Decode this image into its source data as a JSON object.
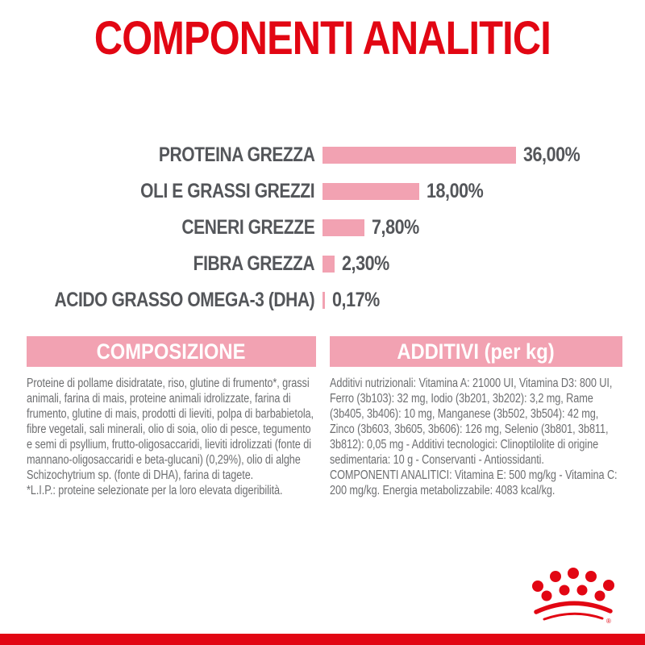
{
  "page": {
    "title": "COMPONENTI ANALITICI",
    "colors": {
      "brand_red": "#E20613",
      "pink": "#F2A2B2",
      "label_gray": "#54565A",
      "body_gray": "#6D6E70"
    }
  },
  "chart_data": {
    "type": "bar",
    "orientation": "horizontal",
    "title": "COMPONENTI ANALITICI",
    "unit": "%",
    "xlim": [
      0,
      36
    ],
    "grid": false,
    "bar_color": "#F2A2B2",
    "categories": [
      "PROTEINA GREZZA",
      "OLI E GRASSI GREZZI",
      "CENERI GREZZE",
      "FIBRA GREZZA",
      "ACIDO GRASSO OMEGA-3 (DHA)"
    ],
    "values": [
      36.0,
      18.0,
      7.8,
      2.3,
      0.17
    ],
    "value_labels": [
      "36,00%",
      "18,00%",
      "7,80%",
      "2,30%",
      "0,17%"
    ]
  },
  "sections": {
    "composizione": {
      "header": "COMPOSIZIONE",
      "body": "Proteine di pollame disidratate, riso, glutine di frumento*, grassi animali, farina di mais, proteine animali idrolizzate, farina di frumento, glutine di mais, prodotti di lieviti, polpa di barbabietola, fibre vegetali, sali minerali, olio di soia, olio di pesce, tegumento e semi di psyllium, frutto-oligosaccaridi, lieviti idrolizzati (fonte di mannano-oligosaccaridi e beta-glucani) (0,29%), olio di alghe Schizochytrium sp. (fonte di DHA), farina di tagete.",
      "footnote": "*L.I.P.: proteine selezionate per la loro elevata digeribilità."
    },
    "additivi": {
      "header": "ADDITIVI (per kg)",
      "body": "Additivi nutrizionali: Vitamina A: 21000 UI, Vitamina D3: 800 UI, Ferro (3b103): 32 mg, Iodio (3b201, 3b202): 3,2 mg, Rame (3b405, 3b406): 10 mg, Manganese (3b502, 3b504): 42 mg, Zinco (3b603, 3b605, 3b606): 126 mg, Selenio (3b801, 3b811, 3b812): 0,05 mg - Additivi tecnologici: Clinoptilolite di origine sedimentaria: 10 g - Conservanti - Antiossidanti.",
      "body2": "COMPONENTI ANALITICI: Vitamina E: 500 mg/kg - Vitamina C: 200 mg/kg. Energia metabolizzabile: 4083 kcal/kg."
    }
  },
  "footer": {
    "logo_name": "royal-canin-crown",
    "trademark": "®"
  }
}
